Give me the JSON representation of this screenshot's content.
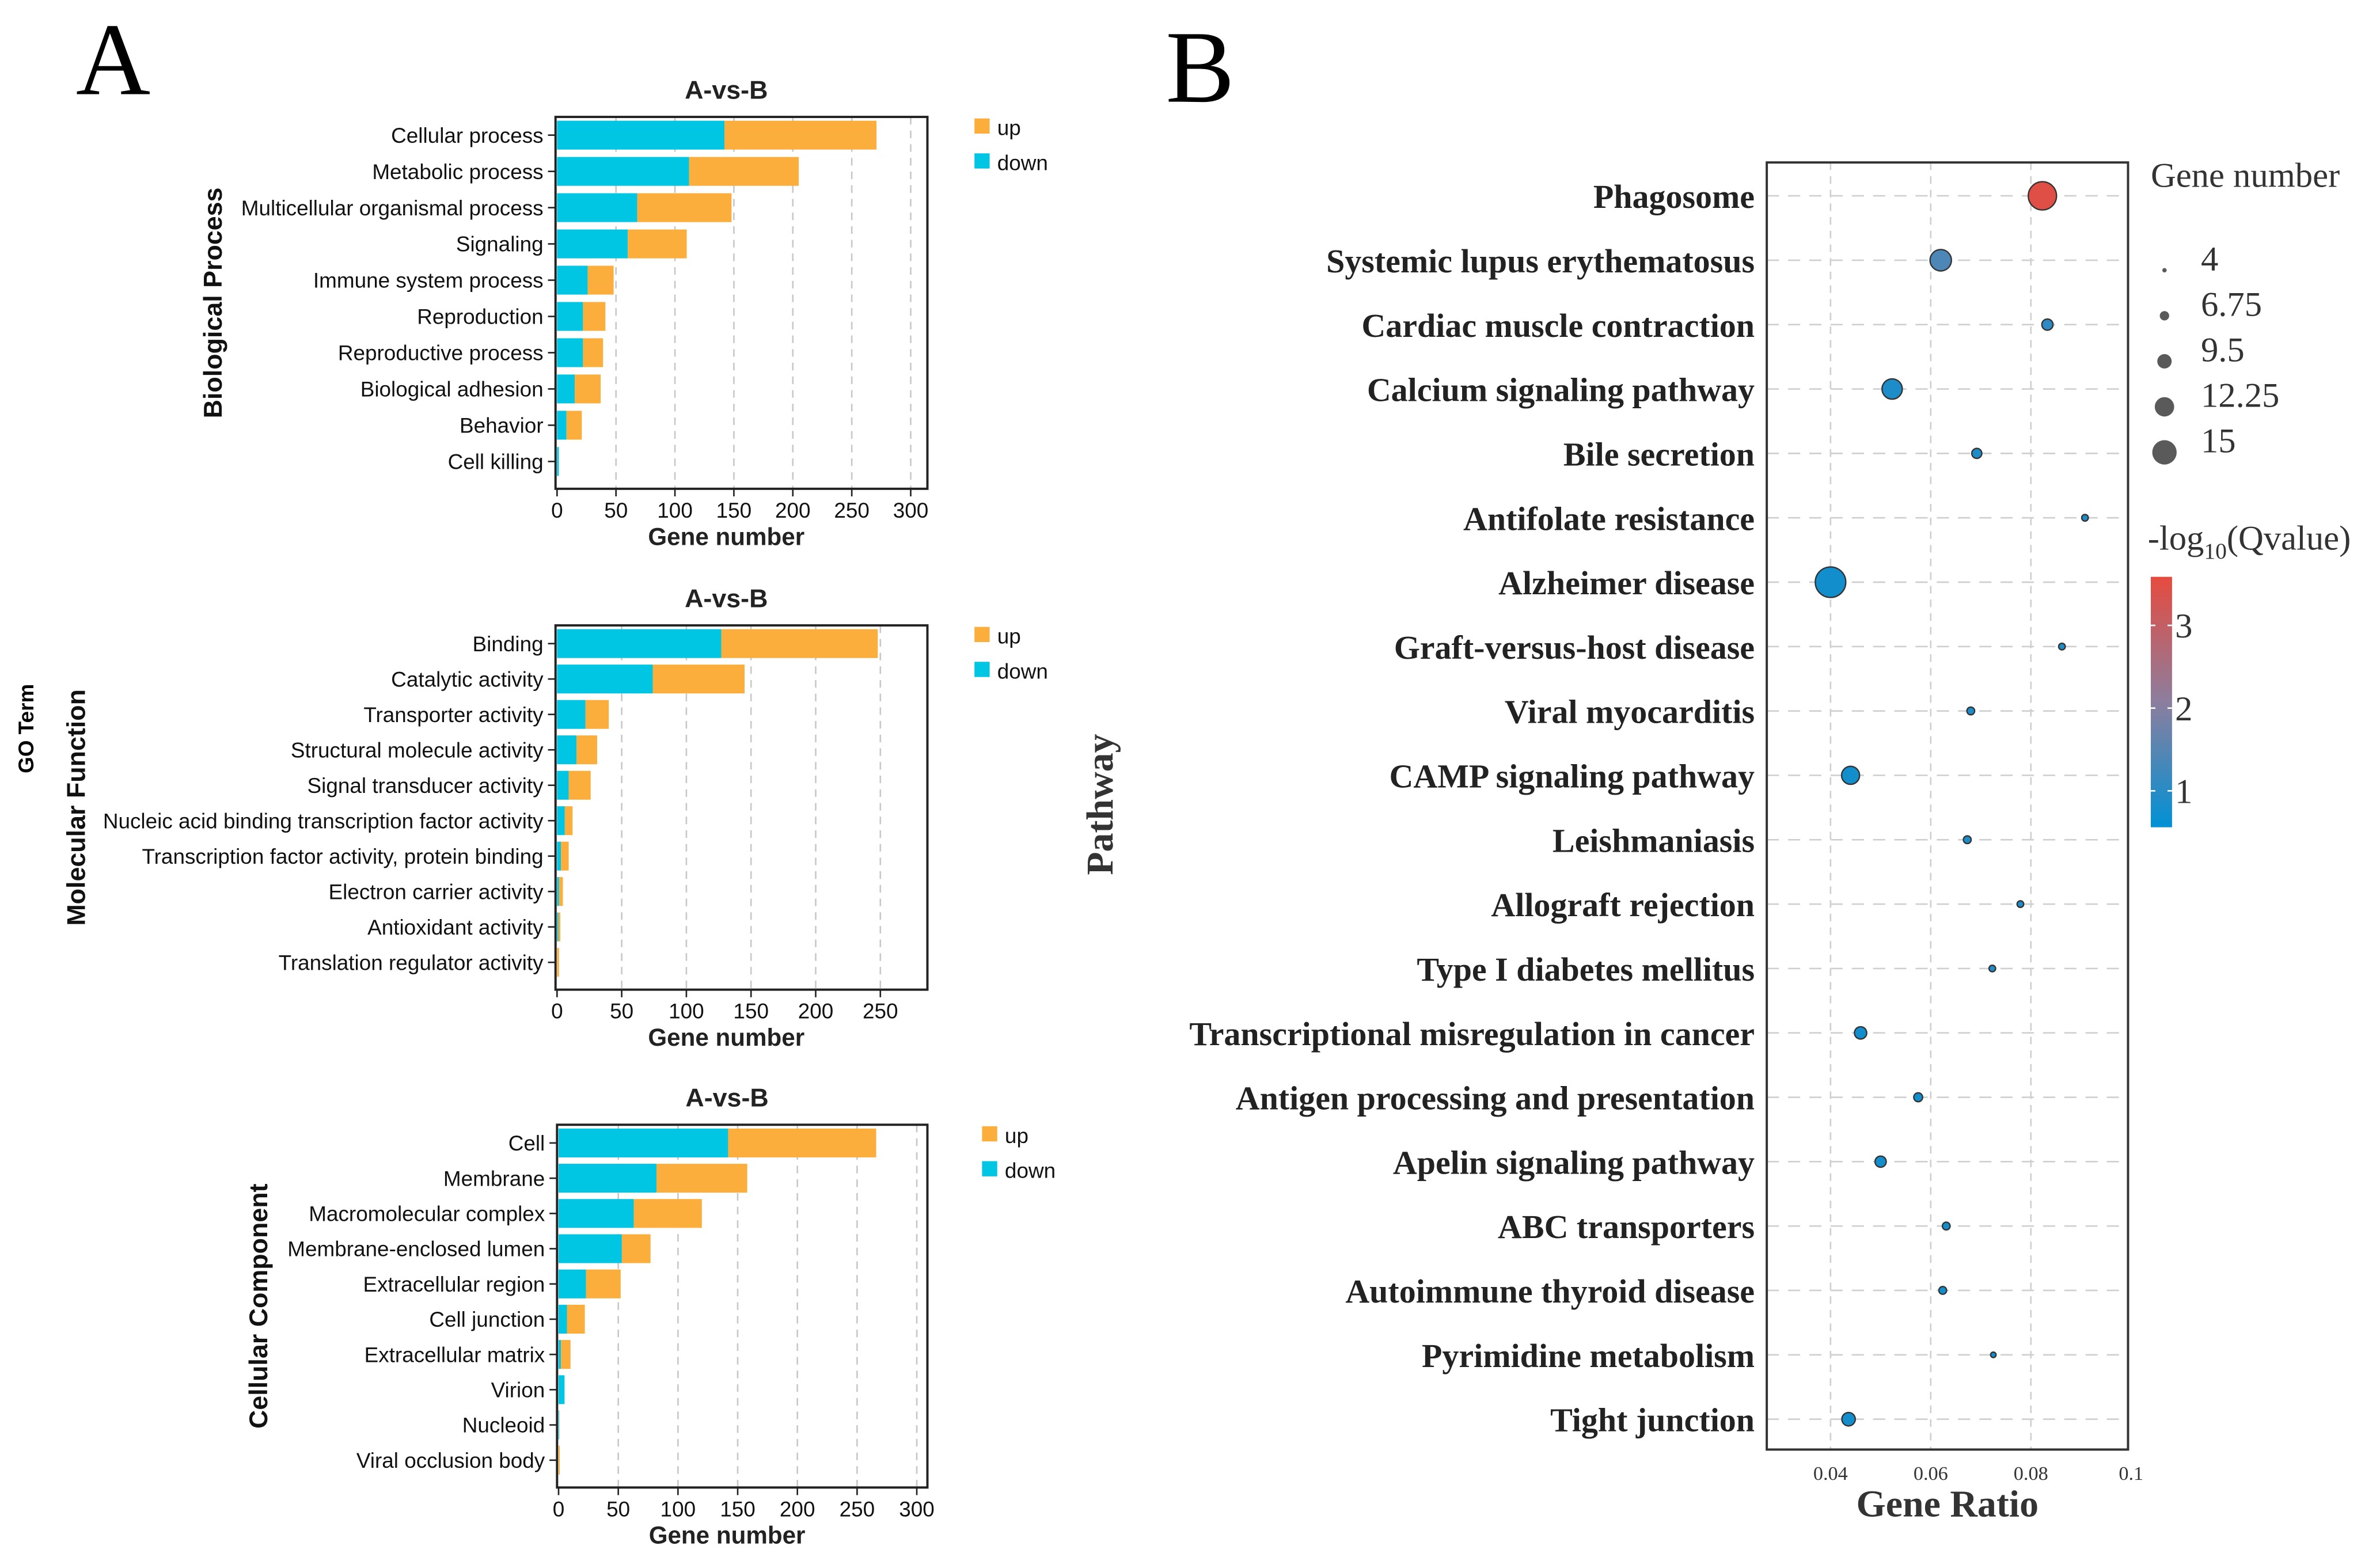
{
  "figure": {
    "panel_a_letter": "A",
    "panel_b_letter": "B",
    "go_term_label": "GO Term"
  },
  "colors": {
    "up": "#FBAE3B",
    "down": "#00C5E3",
    "low": "#0091D5",
    "mid": "#8C7E9E",
    "high": "#E64B3F"
  },
  "chart_data": [
    {
      "id": "bp",
      "type": "bar",
      "stacked": true,
      "orientation": "horizontal",
      "title": "A-vs-B",
      "ylabel": "Biological Process",
      "xlabel": "Gene number",
      "xticks": [
        0,
        50,
        100,
        150,
        200,
        250,
        300
      ],
      "legend": [
        "up",
        "down"
      ],
      "legend_position": "right",
      "grid": "vertical dashed",
      "categories": [
        "Cellular process",
        "Metabolic process",
        "Multicellular organismal process",
        "Signaling",
        "Immune system process",
        "Reproduction",
        "Reproductive process",
        "Biological adhesion",
        "Behavior",
        "Cell killing"
      ],
      "series": [
        {
          "name": "down",
          "values": [
            142,
            112,
            68,
            60,
            26,
            22,
            22,
            15,
            8,
            1.5
          ]
        },
        {
          "name": "up",
          "values": [
            129,
            93,
            80,
            50,
            22,
            19,
            17,
            22,
            13,
            0
          ]
        }
      ]
    },
    {
      "id": "mf",
      "type": "bar",
      "stacked": true,
      "orientation": "horizontal",
      "title": "A-vs-B",
      "ylabel": "Molecular Function",
      "xlabel": "Gene number",
      "xticks": [
        0,
        50,
        100,
        150,
        200,
        250
      ],
      "legend": [
        "up",
        "down"
      ],
      "legend_position": "right",
      "grid": "vertical dashed",
      "categories": [
        "Binding",
        "Catalytic activity",
        "Transporter activity",
        "Structural molecule activity",
        "Signal transducer activity",
        "Nucleic acid binding transcription factor activity",
        "Transcription factor activity, protein binding",
        "Electron carrier activity",
        "Antioxidant activity",
        "Translation regulator activity"
      ],
      "series": [
        {
          "name": "down",
          "values": [
            127,
            74,
            22,
            15,
            9,
            6,
            3,
            1.5,
            1,
            0
          ]
        },
        {
          "name": "up",
          "values": [
            121,
            71,
            18,
            16,
            17,
            6,
            6,
            3,
            1.5,
            1.5
          ]
        }
      ]
    },
    {
      "id": "cc",
      "type": "bar",
      "stacked": true,
      "orientation": "horizontal",
      "title": "A-vs-B",
      "ylabel": "Cellular Component",
      "xlabel": "Gene number",
      "xticks": [
        0,
        50,
        100,
        150,
        200,
        250,
        300
      ],
      "legend": [
        "up",
        "down"
      ],
      "legend_position": "right",
      "grid": "vertical dashed",
      "categories": [
        "Cell",
        "Membrane",
        "Macromolecular complex",
        "Membrane-enclosed lumen",
        "Extracellular region",
        "Cell junction",
        "Extracellular matrix",
        "Virion",
        "Nucleoid",
        "Viral occlusion body"
      ],
      "series": [
        {
          "name": "down",
          "values": [
            142,
            82,
            63,
            53,
            23,
            7,
            2,
            5,
            0.5,
            0
          ]
        },
        {
          "name": "up",
          "values": [
            124,
            76,
            57,
            24,
            29,
            15,
            8,
            0,
            0,
            1
          ]
        }
      ]
    },
    {
      "id": "kegg",
      "type": "scatter",
      "subtype": "bubble",
      "xlabel": "Gene Ratio",
      "ylabel": "Pathway",
      "xlim": [
        0.027,
        0.1
      ],
      "xticks": [
        "0.04",
        "0.06",
        "0.08",
        "0.1"
      ],
      "grid": "dashed",
      "size_legend": {
        "title": "Gene number",
        "values": [
          "4",
          "6.75",
          "9.5",
          "12.25",
          "15"
        ]
      },
      "color_legend": {
        "title_main": "-log",
        "title_sub": "10",
        "title_tail": "(Qvalue)",
        "ticks": [
          "3",
          "2",
          "1"
        ],
        "range": [
          0.7,
          3.6
        ]
      },
      "points": [
        {
          "pathway": "Phagosome",
          "gene_ratio": 0.0823,
          "gene_number": 14,
          "neg_log10_q": 3.5
        },
        {
          "pathway": "Systemic lupus erythematosus",
          "gene_ratio": 0.062,
          "gene_number": 11,
          "neg_log10_q": 1.5
        },
        {
          "pathway": "Cardiac muscle contraction",
          "gene_ratio": 0.0833,
          "gene_number": 6.5,
          "neg_log10_q": 1.2
        },
        {
          "pathway": "Calcium signaling pathway",
          "gene_ratio": 0.0523,
          "gene_number": 10.5,
          "neg_log10_q": 1.0
        },
        {
          "pathway": "Bile secretion",
          "gene_ratio": 0.0692,
          "gene_number": 6,
          "neg_log10_q": 1.0
        },
        {
          "pathway": "Antifolate resistance",
          "gene_ratio": 0.0908,
          "gene_number": 4.5,
          "neg_log10_q": 1.0
        },
        {
          "pathway": "Alzheimer disease",
          "gene_ratio": 0.04,
          "gene_number": 15,
          "neg_log10_q": 0.9
        },
        {
          "pathway": "Graft-versus-host disease",
          "gene_ratio": 0.0862,
          "gene_number": 4.5,
          "neg_log10_q": 1.0
        },
        {
          "pathway": "Viral myocarditis",
          "gene_ratio": 0.068,
          "gene_number": 5,
          "neg_log10_q": 1.0
        },
        {
          "pathway": "CAMP signaling pathway",
          "gene_ratio": 0.044,
          "gene_number": 9.5,
          "neg_log10_q": 0.9
        },
        {
          "pathway": "Leishmaniasis",
          "gene_ratio": 0.0673,
          "gene_number": 5,
          "neg_log10_q": 1.0
        },
        {
          "pathway": "Allograft rejection",
          "gene_ratio": 0.0779,
          "gene_number": 4.5,
          "neg_log10_q": 1.0
        },
        {
          "pathway": "Type I diabetes mellitus",
          "gene_ratio": 0.0723,
          "gene_number": 4.5,
          "neg_log10_q": 1.0
        },
        {
          "pathway": "Transcriptional misregulation in cancer",
          "gene_ratio": 0.046,
          "gene_number": 7,
          "neg_log10_q": 0.9
        },
        {
          "pathway": "Antigen processing and presentation",
          "gene_ratio": 0.0575,
          "gene_number": 5.5,
          "neg_log10_q": 0.9
        },
        {
          "pathway": "Apelin signaling pathway",
          "gene_ratio": 0.05,
          "gene_number": 6.5,
          "neg_log10_q": 0.9
        },
        {
          "pathway": "ABC transporters",
          "gene_ratio": 0.0631,
          "gene_number": 5,
          "neg_log10_q": 0.9
        },
        {
          "pathway": "Autoimmune thyroid disease",
          "gene_ratio": 0.0624,
          "gene_number": 5,
          "neg_log10_q": 0.9
        },
        {
          "pathway": "Pyrimidine metabolism",
          "gene_ratio": 0.0725,
          "gene_number": 4,
          "neg_log10_q": 0.9
        },
        {
          "pathway": "Tight junction",
          "gene_ratio": 0.0436,
          "gene_number": 7.5,
          "neg_log10_q": 0.9
        }
      ]
    }
  ]
}
